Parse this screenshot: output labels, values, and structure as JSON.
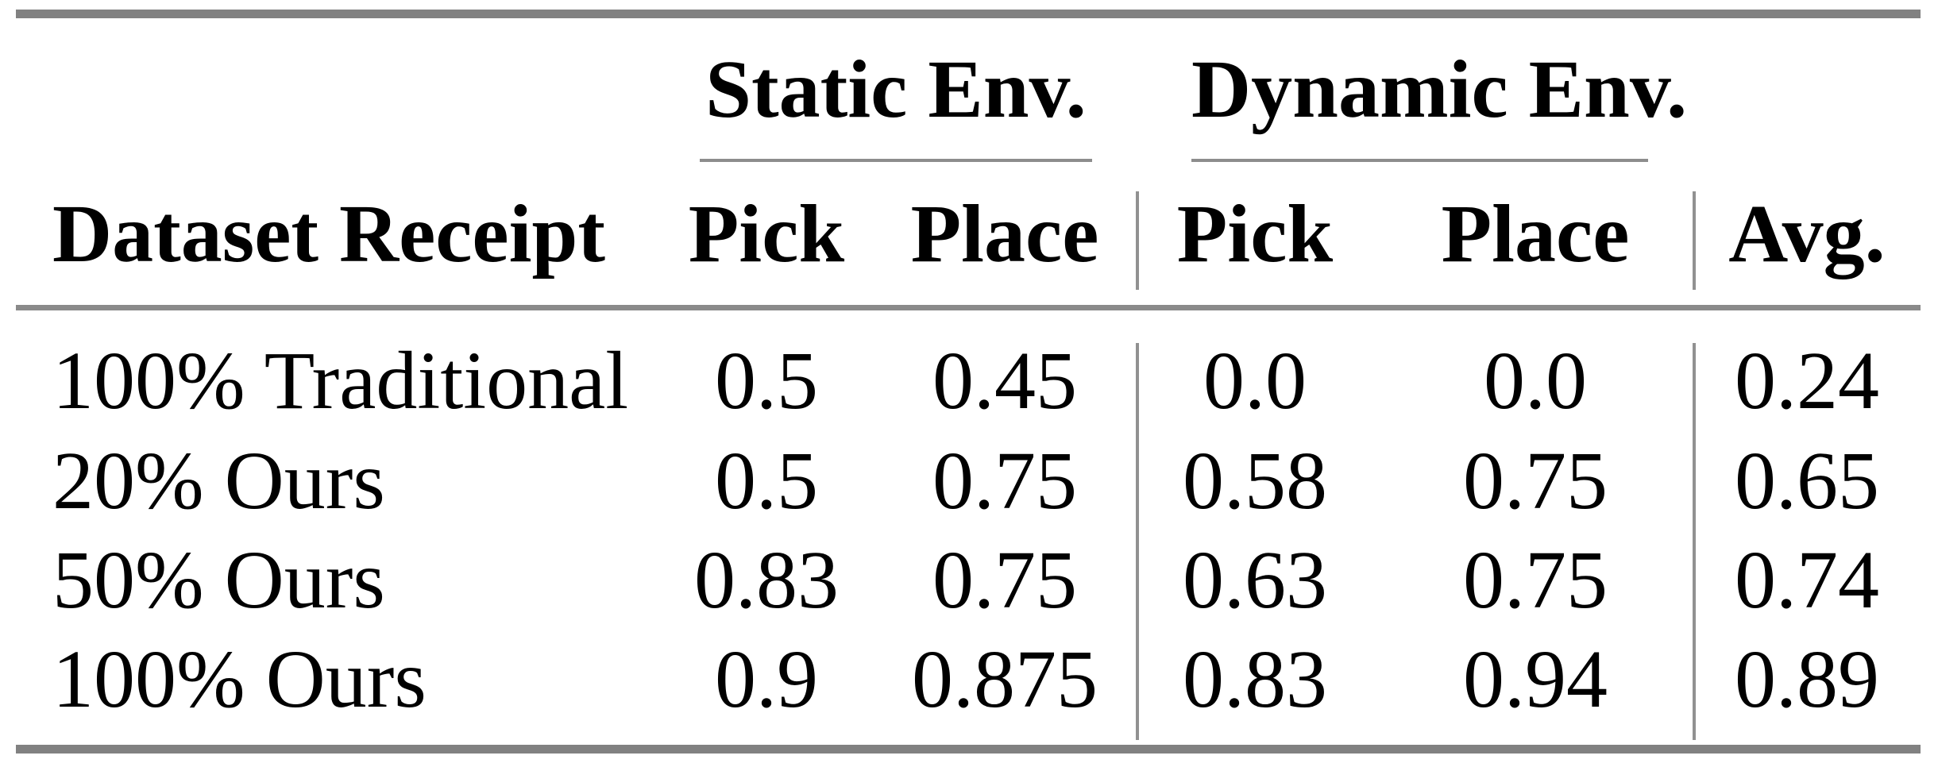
{
  "chart_data": {
    "type": "table",
    "row_header": "Dataset Receipt",
    "groups": [
      {
        "label": "Static Env.",
        "columns": [
          "Pick",
          "Place"
        ]
      },
      {
        "label": "Dynamic Env.",
        "columns": [
          "Pick",
          "Place"
        ]
      }
    ],
    "extra_column": "Avg.",
    "rows": [
      {
        "label": "100% Traditional",
        "values": [
          "0.5",
          "0.45",
          "0.0",
          "0.0",
          "0.24"
        ]
      },
      {
        "label": "20% Ours",
        "values": [
          "0.5",
          "0.75",
          "0.58",
          "0.75",
          "0.65"
        ]
      },
      {
        "label": "50% Ours",
        "values": [
          "0.83",
          "0.75",
          "0.63",
          "0.75",
          "0.74"
        ]
      },
      {
        "label": "100% Ours",
        "values": [
          "0.9",
          "0.875",
          "0.83",
          "0.94",
          "0.89"
        ]
      }
    ],
    "colors": {
      "rule_gray": "#818181",
      "separator_gray": "#919191",
      "text": "#000000",
      "background": "#ffffff"
    }
  }
}
